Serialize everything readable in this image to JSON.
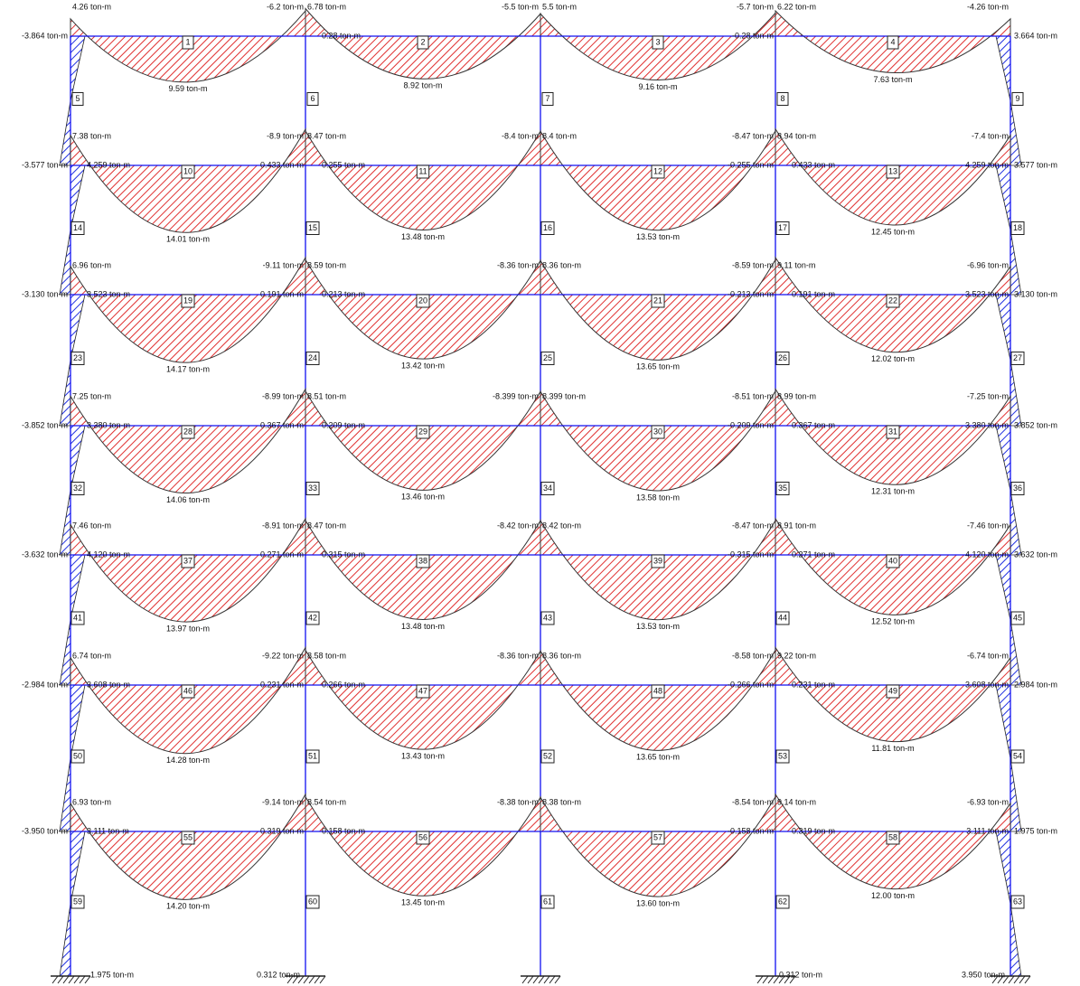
{
  "floors": [
    {
      "top": [
        "4.26 ton-m",
        "-6.2 ton-m",
        "6.78 ton-m",
        "-5.5 ton-m",
        "5.5 ton-m",
        "-5.7 ton-m",
        "6.22 ton-m",
        "-4.26 ton-m"
      ],
      "line": [
        "-3.864 ton-m",
        null,
        null,
        "0.28 ton-m",
        "-0.28 ton-m",
        null,
        null,
        "3.664 ton-m"
      ],
      "beams": [
        {
          "id": "1",
          "moment": "9.59 ton-m"
        },
        {
          "id": "2",
          "moment": "8.92 ton-m"
        },
        {
          "id": "3",
          "moment": "9.16 ton-m"
        },
        {
          "id": "4",
          "moment": "7.63 ton-m"
        }
      ],
      "columns": [
        "5",
        "6",
        "7",
        "8",
        "9"
      ]
    },
    {
      "top": [
        "7.38 ton-m",
        "-8.9 ton-m",
        "8.47 ton-m",
        "-8.4 ton-m",
        "8.4 ton-m",
        "-8.47 ton-m",
        "8.94 ton-m",
        "-7.4 ton-m"
      ],
      "line": [
        "-3.577 ton-m",
        "4.259 ton-m",
        "0.433 ton-m",
        "0.255 ton-m",
        "-0.255 ton-m",
        "0.433 ton-m",
        "4.259 ton-m",
        "3.577 ton-m"
      ],
      "beams": [
        {
          "id": "10",
          "moment": "14.01 ton-m"
        },
        {
          "id": "11",
          "moment": "13.48 ton-m"
        },
        {
          "id": "12",
          "moment": "13.53 ton-m"
        },
        {
          "id": "13",
          "moment": "12.45 ton-m"
        }
      ],
      "columns": [
        "14",
        "15",
        "16",
        "17",
        "18"
      ]
    },
    {
      "top": [
        "6.96 ton-m",
        "-9.11 ton-m",
        "8.59 ton-m",
        "-8.36 ton-m",
        "8.36 ton-m",
        "-8.59 ton-m",
        "9.11 ton-m",
        "-6.96 ton-m"
      ],
      "line": [
        "-3.130 ton-m",
        "3.523 ton-m",
        "0.191 ton-m",
        "0.213 ton-m",
        "-0.213 ton-m",
        "0.191 ton-m",
        "3.523 ton-m",
        "3.130 ton-m"
      ],
      "beams": [
        {
          "id": "19",
          "moment": "14.17 ton-m"
        },
        {
          "id": "20",
          "moment": "13.42 ton-m"
        },
        {
          "id": "21",
          "moment": "13.65 ton-m"
        },
        {
          "id": "22",
          "moment": "12.02 ton-m"
        }
      ],
      "columns": [
        "23",
        "24",
        "25",
        "26",
        "27"
      ]
    },
    {
      "top": [
        "7.25 ton-m",
        "-8.99 ton-m",
        "8.51 ton-m",
        "-8.399 ton-m",
        "8.399 ton-m",
        "-8.51 ton-m",
        "8.99 ton-m",
        "-7.25 ton-m"
      ],
      "line": [
        "-3.852 ton-m",
        "3.380 ton-m",
        "0.367 ton-m",
        "0.209 ton-m",
        "-0.209 ton-m",
        "0.367 ton-m",
        "3.380 ton-m",
        "3.852 ton-m"
      ],
      "beams": [
        {
          "id": "28",
          "moment": "14.06 ton-m"
        },
        {
          "id": "29",
          "moment": "13.46 ton-m"
        },
        {
          "id": "30",
          "moment": "13.58 ton-m"
        },
        {
          "id": "31",
          "moment": "12.31 ton-m"
        }
      ],
      "columns": [
        "32",
        "33",
        "34",
        "35",
        "36"
      ]
    },
    {
      "top": [
        "7.46 ton-m",
        "-8.91 ton-m",
        "8.47 ton-m",
        "-8.42 ton-m",
        "8.42 ton-m",
        "-8.47 ton-m",
        "8.91 ton-m",
        "-7.46 ton-m"
      ],
      "line": [
        "-3.632 ton-m",
        "4.120 ton-m",
        "0.271 ton-m",
        "0.315 ton-m",
        "-0.315 ton-m",
        "0.271 ton-m",
        "4.120 ton-m",
        "3.632 ton-m"
      ],
      "beams": [
        {
          "id": "37",
          "moment": "13.97 ton-m"
        },
        {
          "id": "38",
          "moment": "13.48 ton-m"
        },
        {
          "id": "39",
          "moment": "13.53 ton-m"
        },
        {
          "id": "40",
          "moment": "12.52 ton-m"
        }
      ],
      "columns": [
        "41",
        "42",
        "43",
        "44",
        "45"
      ]
    },
    {
      "top": [
        "6.74 ton-m",
        "-9.22 ton-m",
        "8.58 ton-m",
        "-8.36 ton-m",
        "8.36 ton-m",
        "-8.58 ton-m",
        "9.22 ton-m",
        "-6.74 ton-m"
      ],
      "line": [
        "-2.984 ton-m",
        "3.608 ton-m",
        "0.231 ton-m",
        "0.266 ton-m",
        "-0.266 ton-m",
        "0.231 ton-m",
        "3.608 ton-m",
        "2.984 ton-m"
      ],
      "beams": [
        {
          "id": "46",
          "moment": "14.28 ton-m"
        },
        {
          "id": "47",
          "moment": "13.43 ton-m"
        },
        {
          "id": "48",
          "moment": "13.65 ton-m"
        },
        {
          "id": "49",
          "moment": "11.81 ton-m"
        }
      ],
      "columns": [
        "50",
        "51",
        "52",
        "53",
        "54"
      ]
    },
    {
      "top": [
        "6.93 ton-m",
        "-9.14 ton-m",
        "8.54 ton-m",
        "-8.38 ton-m",
        "8.38 ton-m",
        "-8.54 ton-m",
        "9.14 ton-m",
        "-6.93 ton-m"
      ],
      "line": [
        "-3.950 ton-m",
        "3.111 ton-m",
        "0.319 ton-m",
        "0.158 ton-m",
        "-0.158 ton-m",
        "0.319 ton-m",
        "3.111 ton-m",
        "1.975 ton-m"
      ],
      "beams": [
        {
          "id": "55",
          "moment": "14.20 ton-m"
        },
        {
          "id": "56",
          "moment": "13.45 ton-m"
        },
        {
          "id": "57",
          "moment": "13.60 ton-m"
        },
        {
          "id": "58",
          "moment": "12.00 ton-m"
        }
      ],
      "columns": [
        "59",
        "60",
        "61",
        "62",
        "63"
      ]
    }
  ],
  "base": [
    "1.975 ton-m",
    "0.312 ton-m",
    "0.312 ton-m",
    "3.950 ton-m"
  ]
}
